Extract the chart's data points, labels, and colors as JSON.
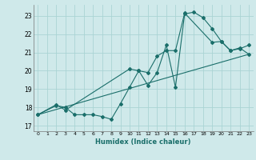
{
  "xlabel": "Humidex (Indice chaleur)",
  "bg_color": "#cfe9ea",
  "grid_color": "#aad4d4",
  "line_color": "#1a6e6a",
  "xlim": [
    -0.5,
    23.5
  ],
  "ylim": [
    16.7,
    23.6
  ],
  "yticks": [
    17,
    18,
    19,
    20,
    21,
    22,
    23
  ],
  "xticks": [
    0,
    1,
    2,
    3,
    4,
    5,
    6,
    7,
    8,
    9,
    10,
    11,
    12,
    13,
    14,
    15,
    16,
    17,
    18,
    19,
    20,
    21,
    22,
    23
  ],
  "series1_x": [
    0,
    2,
    3,
    4,
    5,
    6,
    7,
    8,
    9,
    10,
    11,
    12,
    13,
    14,
    15,
    16,
    17,
    18,
    19,
    20,
    21,
    22,
    23
  ],
  "series1_y": [
    17.6,
    18.1,
    18.0,
    17.6,
    17.6,
    17.6,
    17.5,
    17.35,
    18.2,
    19.1,
    20.0,
    19.2,
    19.9,
    21.4,
    19.1,
    23.1,
    23.2,
    22.9,
    22.3,
    21.6,
    21.1,
    21.2,
    21.4
  ],
  "series2_x": [
    0,
    2,
    3,
    10,
    11,
    12,
    13,
    14,
    15,
    16,
    19,
    20,
    21,
    22,
    23
  ],
  "series2_y": [
    17.6,
    18.15,
    17.85,
    20.1,
    20.0,
    19.9,
    20.8,
    21.1,
    21.1,
    23.15,
    21.55,
    21.6,
    21.1,
    21.25,
    20.9
  ],
  "series3_x": [
    0,
    23
  ],
  "series3_y": [
    17.6,
    20.9
  ]
}
